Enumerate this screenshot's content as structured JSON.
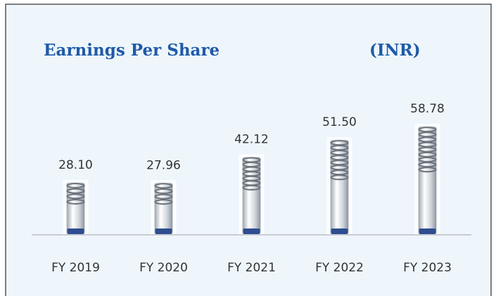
{
  "chart_data": {
    "type": "bar",
    "title": "Earnings Per Share",
    "unit": "(INR)",
    "categories": [
      "FY 2019",
      "FY 2020",
      "FY 2021",
      "FY 2022",
      "FY 2023"
    ],
    "values": [
      28.1,
      27.96,
      42.12,
      51.5,
      58.78
    ],
    "value_labels": [
      "28.10",
      "27.96",
      "42.12",
      "51.50",
      "58.78"
    ],
    "color": "#d8dde3"
  }
}
